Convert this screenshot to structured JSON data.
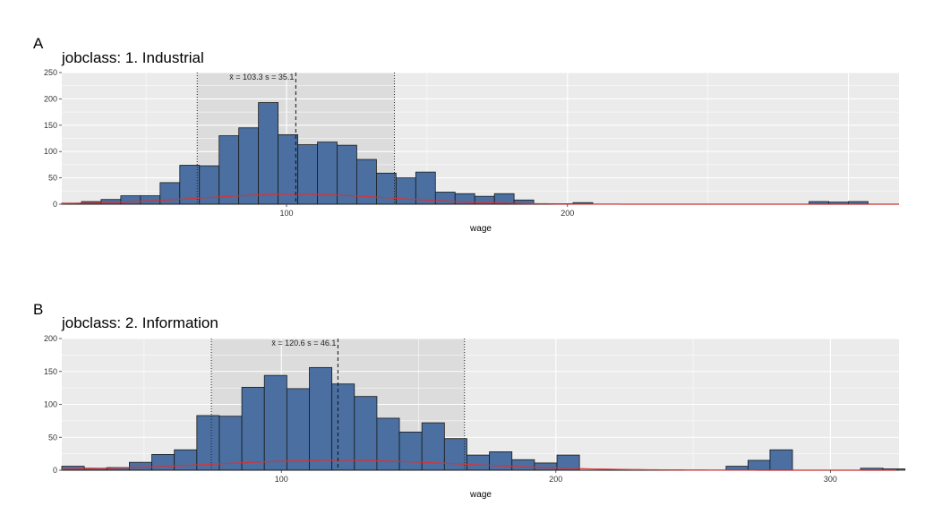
{
  "chart_data": [
    {
      "type": "bar",
      "panel_tag": "A",
      "title": "jobclass: 1. Industrial",
      "xlabel": "wage",
      "ylabel": "",
      "xlim": [
        20,
        318
      ],
      "ylim": [
        0,
        250
      ],
      "xticks": [
        100,
        200
      ],
      "yticks": [
        0,
        50,
        100,
        150,
        200,
        250
      ],
      "bin_width": 7.0,
      "bins_start": 20,
      "values": [
        2,
        5,
        9,
        16,
        16,
        41,
        74,
        73,
        130,
        145,
        193,
        132,
        113,
        118,
        112,
        85,
        59,
        50,
        61,
        23,
        20,
        15,
        20,
        8,
        1,
        1,
        3,
        0,
        0,
        0,
        0,
        0,
        0,
        0,
        0,
        0,
        0,
        0,
        5,
        4,
        5,
        0,
        0
      ],
      "bar_color": "#4a6fa0",
      "mean_line": 103.3,
      "sd_band": [
        68.2,
        138.4
      ],
      "stat_text": "x̄ = 103.3  s = 35.1",
      "density_color": "#e03030",
      "grid": true
    },
    {
      "type": "bar",
      "panel_tag": "B",
      "title": "jobclass: 2. Information",
      "xlabel": "wage",
      "ylabel": "",
      "xlim": [
        20,
        325
      ],
      "ylim": [
        0,
        200
      ],
      "xticks": [
        100,
        200,
        300
      ],
      "yticks": [
        0,
        50,
        100,
        150,
        200
      ],
      "bin_width": 8.2,
      "bins_start": 20,
      "values": [
        6,
        3,
        4,
        12,
        24,
        31,
        83,
        82,
        126,
        144,
        124,
        156,
        131,
        112,
        79,
        58,
        72,
        48,
        23,
        28,
        16,
        11,
        23,
        0,
        0,
        0,
        0,
        0,
        0,
        0,
        0,
        0,
        0,
        0,
        0,
        0,
        0,
        0,
        0,
        0,
        0,
        0,
        0,
        0,
        0,
        0,
        0,
        0,
        0,
        0,
        0,
        0,
        0,
        0,
        0,
        0,
        0
      ],
      "bar_color": "#4a6fa0",
      "mean_line": 120.6,
      "sd_band": [
        74.5,
        166.7
      ],
      "stat_text": "x̄ = 120.6  s = 46.1",
      "density_color": "#e03030",
      "grid": true,
      "extra_bars": [
        {
          "x": 262,
          "value": 6
        },
        {
          "x": 270,
          "value": 15
        },
        {
          "x": 278,
          "value": 31
        },
        {
          "x": 311,
          "value": 3
        },
        {
          "x": 319,
          "value": 2
        }
      ]
    }
  ]
}
